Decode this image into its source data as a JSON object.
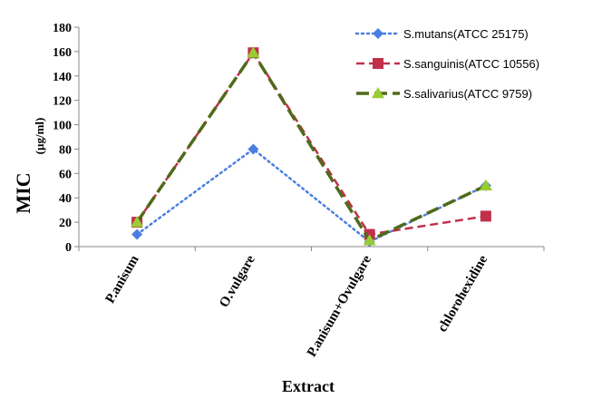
{
  "chart_data": {
    "type": "line",
    "categories": [
      "P.anisum",
      "O.vulgare",
      "P.anisum+Ovulgare",
      "chlorohexidine"
    ],
    "series": [
      {
        "name": "S.mutans(ATCC 25175)",
        "values": [
          10,
          80,
          4,
          50
        ],
        "color": "#4a7fe0",
        "marker": "diamond",
        "line": "dotted"
      },
      {
        "name": "S.sanguinis(ATCC 10556)",
        "values": [
          20,
          159,
          10,
          25
        ],
        "color": "#c0304a",
        "marker": "square",
        "line": "dashed"
      },
      {
        "name": "S.salivarius(ATCC 9759)",
        "values": [
          20,
          159,
          5,
          50
        ],
        "color": "#4f6a1a",
        "marker": "triangle",
        "line": "long-dashed",
        "marker_color": "#99cc33"
      }
    ],
    "ylabel_main": "MIC",
    "ylabel_unit": "(µg/ml)",
    "xlabel": "Extract",
    "ylim": [
      0,
      180
    ],
    "yticks": [
      0,
      20,
      40,
      60,
      80,
      100,
      120,
      140,
      160,
      180
    ],
    "grid": false,
    "legend_position": "top-right"
  }
}
